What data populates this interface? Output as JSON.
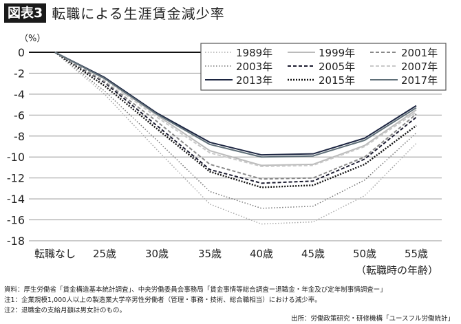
{
  "header": {
    "figure_label": "図表3",
    "title": "転職による生涯賃金減少率"
  },
  "chart_data": {
    "type": "line",
    "title": "転職による生涯賃金減少率",
    "ylabel": "（%）",
    "xlabel": "（転職時の年齢）",
    "categories": [
      "転職なし",
      "25歳",
      "30歳",
      "35歳",
      "40歳",
      "45歳",
      "50歳",
      "55歳"
    ],
    "ylim": [
      -18,
      0
    ],
    "yticks": [
      0,
      -2,
      -4,
      -6,
      -8,
      -10,
      -12,
      -14,
      -16,
      -18
    ],
    "grid": true,
    "legend_position": "top-right",
    "series": [
      {
        "name": "1989年",
        "color": "#aaaaaa",
        "style": "dotted",
        "values": [
          0,
          -4.0,
          -9.3,
          -14.5,
          -16.4,
          -16.2,
          -13.7,
          -8.7
        ]
      },
      {
        "name": "2003年",
        "color": "#777777",
        "style": "dotted",
        "values": [
          0,
          -3.7,
          -8.4,
          -13.3,
          -14.9,
          -14.7,
          -12.2,
          -7.7
        ]
      },
      {
        "name": "2013年",
        "color": "#1c2541",
        "style": "solid",
        "values": [
          0,
          -2.4,
          -5.8,
          -8.6,
          -9.8,
          -9.7,
          -8.2,
          -5.1
        ]
      },
      {
        "name": "1999年",
        "color": "#bbbbbb",
        "style": "solid",
        "values": [
          0,
          -2.5,
          -6.0,
          -9.4,
          -10.8,
          -10.7,
          -8.9,
          -5.5
        ]
      },
      {
        "name": "2005年",
        "color": "#1a1a2e",
        "style": "dashed",
        "values": [
          0,
          -2.9,
          -7.0,
          -11.2,
          -12.5,
          -12.3,
          -10.2,
          -6.2
        ]
      },
      {
        "name": "2015年",
        "color": "#111111",
        "style": "dotted-bold",
        "values": [
          0,
          -3.2,
          -7.3,
          -11.4,
          -12.9,
          -12.7,
          -10.7,
          -7.0
        ]
      },
      {
        "name": "2001年",
        "color": "#888888",
        "style": "dashed",
        "values": [
          0,
          -2.8,
          -6.6,
          -10.7,
          -12.1,
          -12.0,
          -10.0,
          -5.9
        ]
      },
      {
        "name": "2007年",
        "color": "#c8c8c8",
        "style": "dashed",
        "values": [
          0,
          -2.6,
          -6.2,
          -9.6,
          -10.9,
          -10.8,
          -9.0,
          -5.7
        ]
      },
      {
        "name": "2017年",
        "color": "#5f6f78",
        "style": "solid",
        "values": [
          0,
          -2.5,
          -5.9,
          -8.8,
          -10.0,
          -9.9,
          -8.4,
          -5.3
        ]
      }
    ]
  },
  "notes": [
    "資料：厚生労働省「賃金構造基本統計調査」、中央労働委員会事務局「賃金事情等総合調査ー退職金・年金及び定年制事情調査ー」",
    "注1：企業規模1,000人以上の製造業大学卒男性労働者（管理・事務・技術、総合職相当）における減少率。",
    "注2：退職金の支給月額は男女計のもの。"
  ],
  "source": "出所：労働政策研究・研修機構「ユースフル労働統計」"
}
